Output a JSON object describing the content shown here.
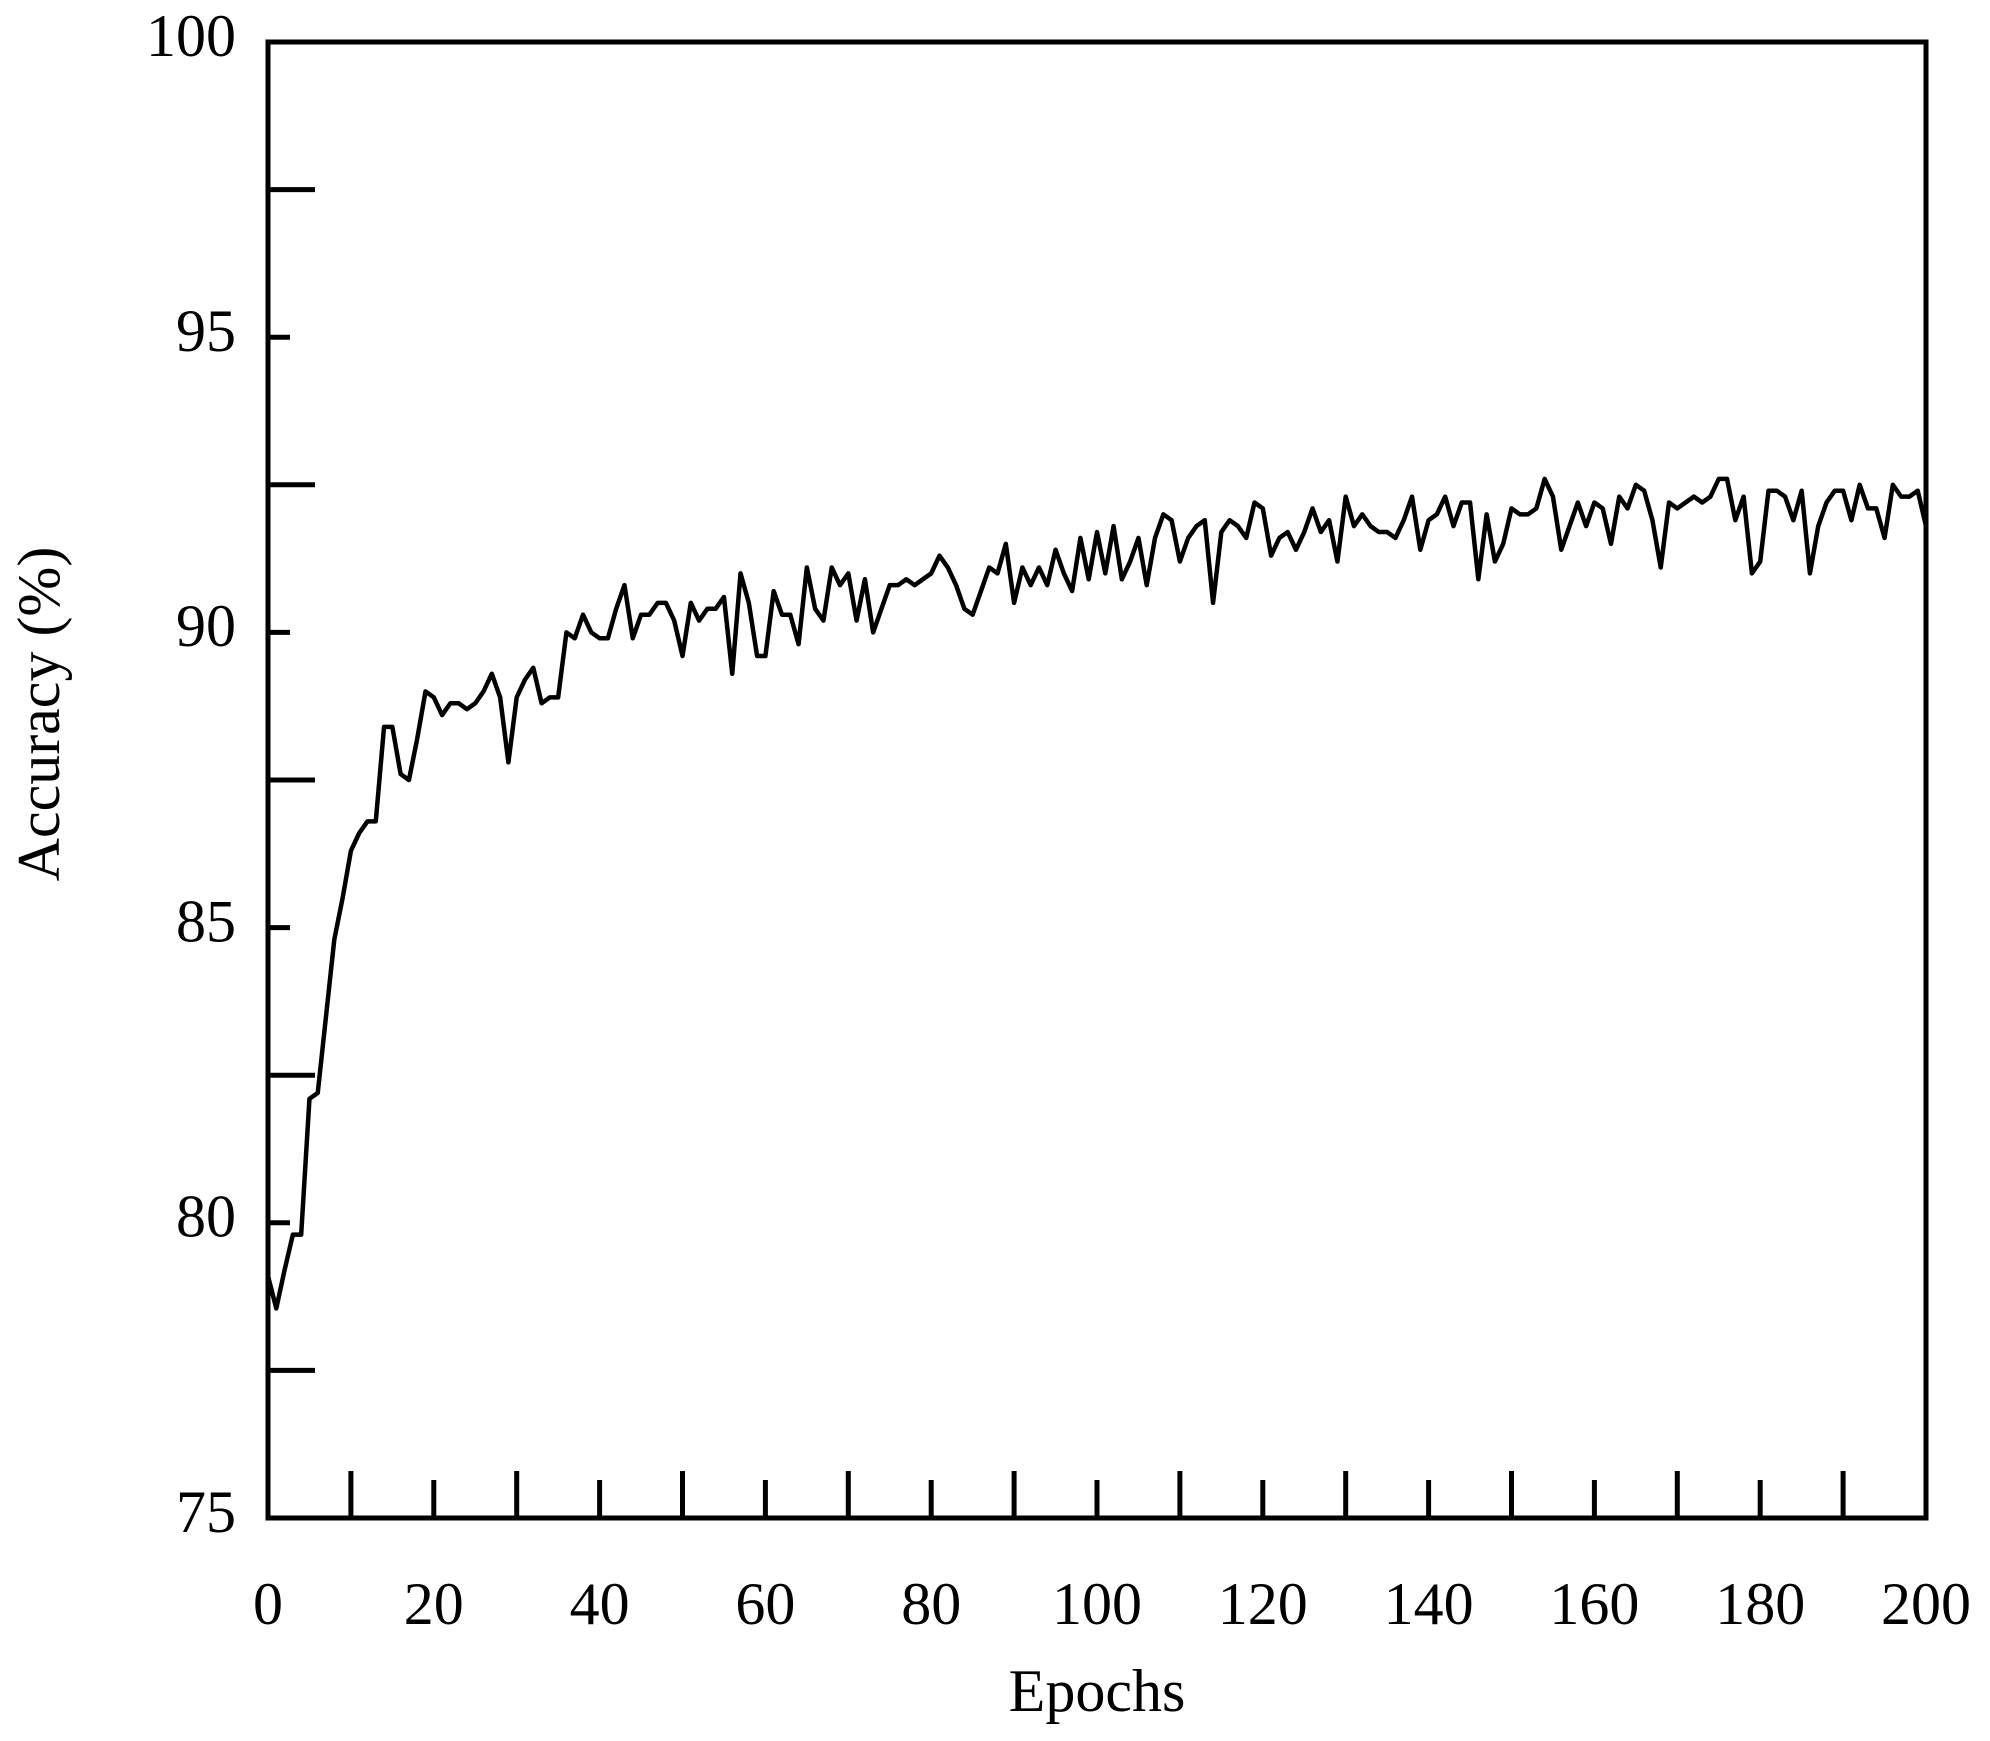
{
  "chart_data": {
    "type": "line",
    "xlabel": "Epochs",
    "ylabel": "Accuracy (%)",
    "xlim": [
      0,
      200
    ],
    "ylim": [
      75,
      100
    ],
    "xticks": [
      0,
      {
        "value": 10,
        "label": null
      },
      20,
      {
        "value": 30,
        "label": null
      },
      40,
      {
        "value": 50,
        "label": null
      },
      60,
      {
        "value": 70,
        "label": null
      },
      80,
      {
        "value": 90,
        "label": null
      },
      100,
      {
        "value": 110,
        "label": null
      },
      120,
      {
        "value": 130,
        "label": null
      },
      140,
      {
        "value": 150,
        "label": null
      },
      160,
      {
        "value": 170,
        "label": null
      },
      180,
      {
        "value": 190,
        "label": null
      },
      200
    ],
    "yticks": [
      75,
      {
        "value": 77.5,
        "label": null
      },
      80,
      {
        "value": 82.5,
        "label": null
      },
      85,
      {
        "value": 87.5,
        "label": null
      },
      90,
      {
        "value": 92.5,
        "label": null
      },
      95,
      {
        "value": 97.5,
        "label": null
      },
      100
    ],
    "grid": false,
    "x": [
      0,
      1,
      2,
      3,
      4,
      5,
      6,
      7,
      8,
      9,
      10,
      11,
      12,
      13,
      14,
      15,
      16,
      17,
      18,
      19,
      20,
      21,
      22,
      23,
      24,
      25,
      26,
      27,
      28,
      29,
      30,
      31,
      32,
      33,
      34,
      35,
      36,
      37,
      38,
      39,
      40,
      41,
      42,
      43,
      44,
      45,
      46,
      47,
      48,
      49,
      50,
      51,
      52,
      53,
      54,
      55,
      56,
      57,
      58,
      59,
      60,
      61,
      62,
      63,
      64,
      65,
      66,
      67,
      68,
      69,
      70,
      71,
      72,
      73,
      74,
      75,
      76,
      77,
      78,
      79,
      80,
      81,
      82,
      83,
      84,
      85,
      86,
      87,
      88,
      89,
      90,
      91,
      92,
      93,
      94,
      95,
      96,
      97,
      98,
      99,
      100,
      101,
      102,
      103,
      104,
      105,
      106,
      107,
      108,
      109,
      110,
      111,
      112,
      113,
      114,
      115,
      116,
      117,
      118,
      119,
      120,
      121,
      122,
      123,
      124,
      125,
      126,
      127,
      128,
      129,
      130,
      131,
      132,
      133,
      134,
      135,
      136,
      137,
      138,
      139,
      140,
      141,
      142,
      143,
      144,
      145,
      146,
      147,
      148,
      149,
      150,
      151,
      152,
      153,
      154,
      155,
      156,
      157,
      158,
      159,
      160,
      161,
      162,
      163,
      164,
      165,
      166,
      167,
      168,
      169,
      170,
      171,
      172,
      173,
      174,
      175,
      176,
      177,
      178,
      179,
      180,
      181,
      182,
      183,
      184,
      185,
      186,
      187,
      188,
      189,
      190,
      191,
      192,
      193,
      194,
      195,
      196,
      197,
      198,
      199,
      200
    ],
    "series": [
      {
        "color": "#000000",
        "values": [
          79.1,
          78.55,
          79.2,
          79.8,
          79.8,
          82.1,
          82.2,
          83.5,
          84.8,
          85.5,
          86.3,
          86.6,
          86.8,
          86.8,
          88.4,
          88.4,
          87.6,
          87.5,
          88.2,
          89.0,
          88.9,
          88.6,
          88.8,
          88.8,
          88.7,
          88.8,
          89.0,
          89.3,
          88.9,
          87.8,
          88.9,
          89.2,
          89.4,
          88.8,
          88.9,
          88.9,
          90.0,
          89.9,
          90.3,
          90.0,
          89.9,
          89.9,
          90.4,
          90.8,
          89.9,
          90.3,
          90.3,
          90.5,
          90.5,
          90.2,
          89.6,
          90.5,
          90.2,
          90.4,
          90.4,
          90.6,
          89.3,
          91.0,
          90.5,
          89.6,
          89.6,
          90.7,
          90.3,
          90.3,
          89.8,
          91.1,
          90.4,
          90.2,
          91.1,
          90.8,
          91.0,
          90.2,
          90.9,
          90.0,
          90.4,
          90.8,
          90.8,
          90.9,
          90.8,
          90.9,
          91.0,
          91.3,
          91.1,
          90.8,
          90.4,
          90.3,
          90.7,
          91.1,
          91.0,
          91.5,
          90.5,
          91.1,
          90.8,
          91.1,
          90.8,
          91.4,
          91.0,
          90.7,
          91.6,
          90.9,
          91.7,
          91.0,
          91.8,
          90.9,
          91.2,
          91.6,
          90.8,
          91.6,
          92.0,
          91.9,
          91.2,
          91.6,
          91.8,
          91.9,
          90.5,
          91.7,
          91.9,
          91.8,
          91.6,
          92.2,
          92.1,
          91.3,
          91.6,
          91.7,
          91.4,
          91.7,
          92.1,
          91.7,
          91.9,
          91.2,
          92.3,
          91.8,
          92.0,
          91.8,
          91.7,
          91.7,
          91.6,
          91.9,
          92.3,
          91.4,
          91.9,
          92.0,
          92.3,
          91.8,
          92.2,
          92.2,
          90.9,
          92.0,
          91.2,
          91.5,
          92.1,
          92.0,
          92.0,
          92.1,
          92.6,
          92.3,
          91.4,
          91.8,
          92.2,
          91.8,
          92.2,
          92.1,
          91.5,
          92.3,
          92.1,
          92.5,
          92.4,
          91.9,
          91.1,
          92.2,
          92.1,
          92.2,
          92.3,
          92.2,
          92.3,
          92.6,
          92.6,
          91.9,
          92.3,
          91.0,
          91.2,
          92.4,
          92.4,
          92.3,
          91.9,
          92.4,
          91.0,
          91.8,
          92.2,
          92.4,
          92.4,
          91.9,
          92.5,
          92.1,
          92.1,
          91.6,
          92.5,
          92.3,
          92.3,
          92.4,
          91.8
        ]
      }
    ]
  }
}
